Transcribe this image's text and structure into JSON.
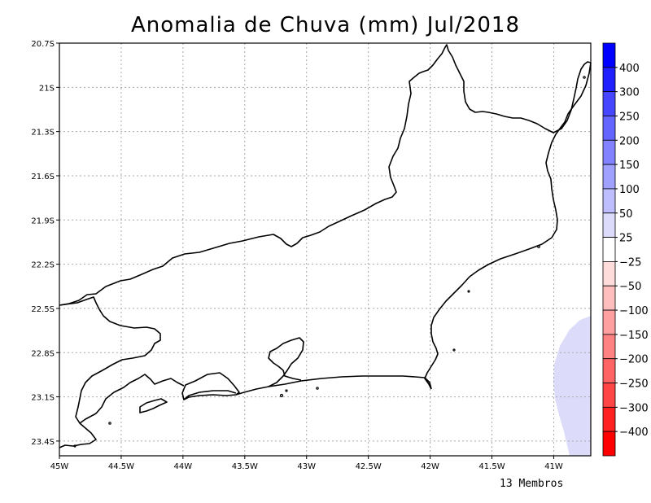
{
  "title": "Anomalia de Chuva (mm) Jul/2018",
  "footnote": "13 Membros",
  "map": {
    "lat_ticks": [
      "20.7S",
      "21S",
      "21.3S",
      "21.6S",
      "21.9S",
      "22.2S",
      "22.5S",
      "22.8S",
      "23.1S",
      "23.4S"
    ],
    "lon_ticks": [
      "45W",
      "44.5W",
      "44W",
      "43.5W",
      "43W",
      "42.5W",
      "42W",
      "41.5W",
      "41W"
    ],
    "lat_range": [
      -23.5,
      -20.7
    ],
    "lon_range": [
      -45.0,
      -40.7
    ],
    "grid": true,
    "land_color": "#ffffff",
    "anomaly_region_color": "#dcdcfa"
  },
  "colorbar": {
    "labels": [
      "400",
      "300",
      "250",
      "200",
      "150",
      "100",
      "50",
      "25",
      "−25",
      "−50",
      "−100",
      "−150",
      "−200",
      "−250",
      "−300",
      "−400"
    ],
    "colors": [
      "#0000ff",
      "#2020ff",
      "#4646ff",
      "#6464ff",
      "#8282ff",
      "#a0a0ff",
      "#bebeff",
      "#dcdcfa",
      "#ffffff",
      "#ffdcdc",
      "#ffbebe",
      "#ffa0a0",
      "#ff8282",
      "#ff6464",
      "#ff4646",
      "#ff2020",
      "#ff0000"
    ]
  }
}
